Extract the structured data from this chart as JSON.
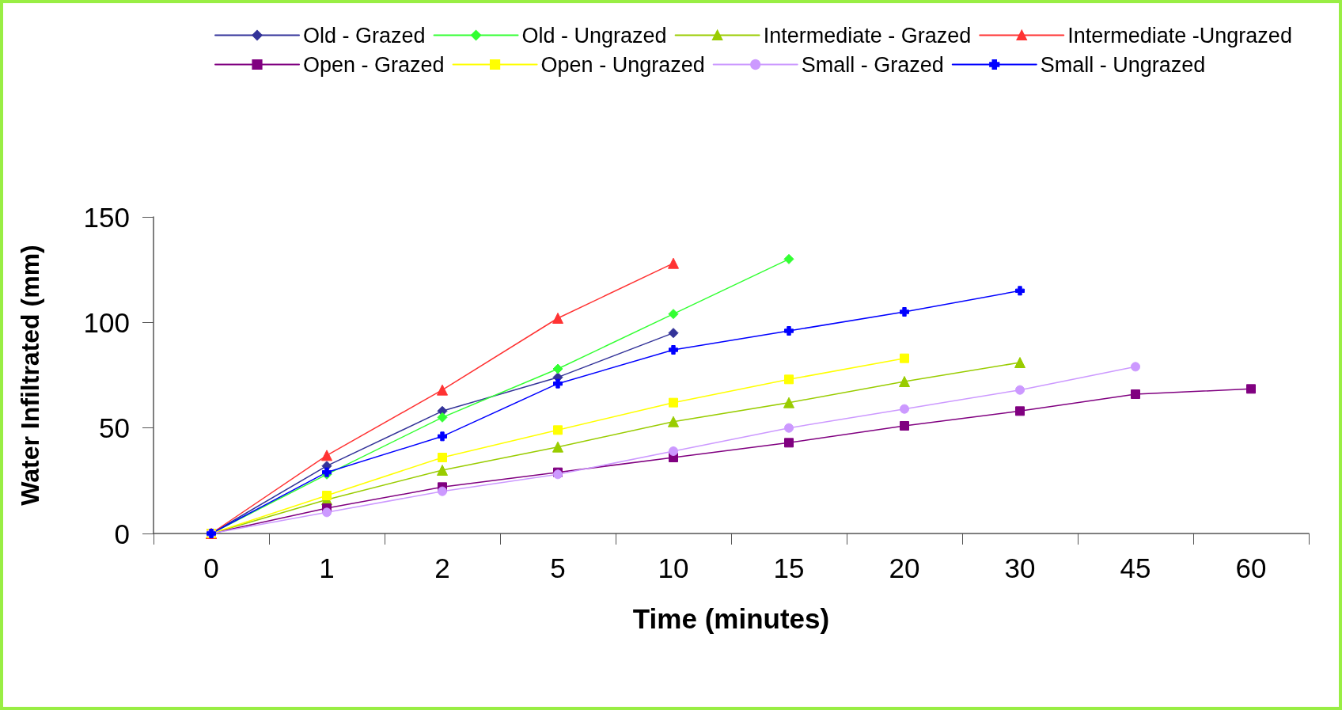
{
  "chart_data": {
    "type": "line",
    "xlabel": "Time (minutes)",
    "ylabel": "Water Infiltrated (mm)",
    "categories": [
      "0",
      "1",
      "2",
      "5",
      "10",
      "15",
      "20",
      "30",
      "45",
      "60"
    ],
    "ylim": [
      0,
      150
    ],
    "yticks": [
      0,
      50,
      100,
      150
    ],
    "grid": false,
    "legend": "top",
    "line_style": "solid",
    "series": [
      {
        "name": "Old - Grazed",
        "color": "#333399",
        "marker": "diamond",
        "values": [
          0,
          32,
          58,
          74,
          95,
          null,
          null,
          null,
          null,
          null
        ]
      },
      {
        "name": "Old - Ungrazed",
        "color": "#33ff33",
        "marker": "diamond",
        "values": [
          0,
          28,
          55,
          78,
          104,
          130,
          null,
          null,
          null,
          null
        ]
      },
      {
        "name": "Intermediate - Grazed",
        "color": "#99cc00",
        "marker": "triangle",
        "values": [
          0,
          16,
          30,
          41,
          53,
          62,
          72,
          81,
          null,
          null
        ]
      },
      {
        "name": "Intermediate -Ungrazed",
        "color": "#ff3333",
        "marker": "triangle",
        "values": [
          0,
          37,
          68,
          102,
          128,
          null,
          null,
          null,
          null,
          null
        ]
      },
      {
        "name": "Open - Grazed",
        "color": "#800080",
        "marker": "square",
        "values": [
          0,
          12,
          22,
          29,
          36,
          43,
          51,
          58,
          66,
          68.5
        ]
      },
      {
        "name": "Open - Ungrazed",
        "color": "#ffff00",
        "marker": "square",
        "values": [
          0,
          18,
          36,
          49,
          62,
          73,
          83,
          null,
          null,
          null
        ]
      },
      {
        "name": "Small - Grazed",
        "color": "#cc99ff",
        "marker": "circle",
        "values": [
          0,
          10,
          20,
          28,
          39,
          50,
          59,
          68,
          79,
          null
        ]
      },
      {
        "name": "Small - Ungrazed",
        "color": "#0000ff",
        "marker": "cross",
        "values": [
          0,
          29,
          46,
          71,
          87,
          96,
          105,
          115,
          null,
          null
        ]
      }
    ]
  }
}
